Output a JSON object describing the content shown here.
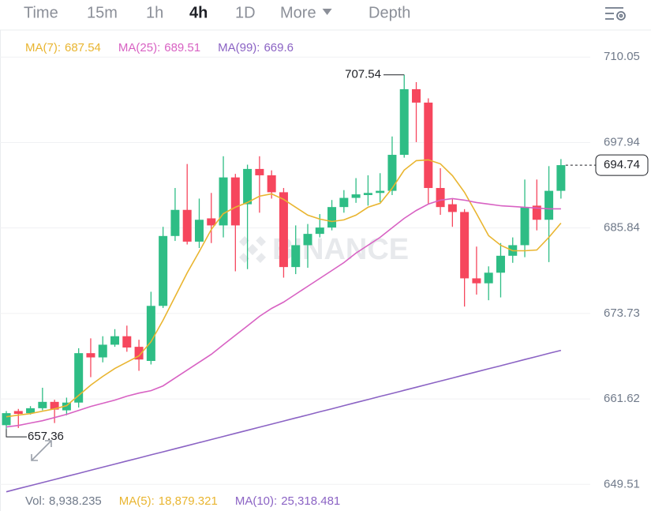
{
  "toolbar": {
    "tabs": [
      "Time",
      "15m",
      "1h",
      "4h",
      "1D",
      "More",
      "Depth"
    ],
    "active": 3
  },
  "chart_data": {
    "type": "candlestick",
    "watermark": "BINANCE",
    "up_color": "#2ebd85",
    "down_color": "#f6465d",
    "ylim": [
      648.2,
      713.1
    ],
    "yticks": [
      710.05,
      697.94,
      685.84,
      673.73,
      661.62,
      649.51
    ],
    "grid": true,
    "open": [
      657.9,
      659.9,
      659.6,
      660.3,
      661.2,
      660.0,
      661.1,
      668.1,
      667.5,
      669.3,
      670.5,
      669.0,
      667.0,
      674.8,
      684.7,
      688.4,
      683.9,
      687.2,
      686.2,
      693.0,
      689.2,
      694.2,
      693.3,
      690.9,
      680.3,
      683.4,
      685.0,
      685.9,
      688.8,
      690.1,
      690.5,
      690.8,
      691.1,
      696.2,
      705.5,
      703.6,
      691.5,
      689.2,
      688.1,
      678.7,
      678.0,
      679.5,
      681.9,
      683.4,
      689.0,
      687.0,
      691.1
    ],
    "high": [
      659.9,
      660.2,
      660.6,
      663.2,
      661.5,
      661.8,
      668.8,
      670.2,
      670.5,
      671.5,
      672.0,
      670.0,
      676.8,
      686.0,
      691.5,
      694.9,
      690.0,
      690.8,
      696.0,
      693.5,
      694.8,
      696.0,
      694.0,
      691.5,
      686.2,
      686.4,
      687.8,
      689.8,
      691.2,
      692.9,
      693.3,
      693.6,
      698.8,
      707.54,
      706.5,
      704.2,
      694.3,
      690.0,
      688.5,
      683.2,
      680.4,
      683.7,
      684.5,
      692.7,
      692.7,
      694.6,
      695.6
    ],
    "low": [
      657.36,
      657.5,
      659.4,
      660.0,
      658.2,
      659.3,
      660.4,
      664.7,
      666.8,
      669.0,
      668.3,
      665.6,
      666.5,
      674.5,
      684.0,
      683.5,
      683.0,
      683.7,
      684.5,
      679.7,
      680.0,
      688.0,
      690.0,
      678.8,
      679.3,
      680.2,
      684.5,
      685.5,
      688.0,
      689.4,
      689.0,
      689.5,
      690.5,
      695.8,
      698.0,
      689.3,
      687.7,
      686.0,
      674.7,
      676.4,
      675.6,
      676.0,
      680.9,
      681.7,
      685.5,
      681.0,
      690.0
    ],
    "close": [
      659.6,
      659.5,
      660.3,
      661.2,
      660.1,
      661.1,
      668.1,
      667.5,
      669.3,
      670.5,
      668.9,
      667.2,
      674.8,
      684.7,
      688.4,
      683.9,
      687.0,
      686.2,
      693.0,
      686.2,
      694.2,
      693.3,
      690.9,
      680.3,
      683.4,
      685.0,
      685.9,
      688.8,
      690.1,
      690.6,
      690.8,
      691.1,
      696.2,
      705.5,
      703.6,
      691.5,
      688.8,
      688.1,
      678.7,
      678.0,
      679.5,
      681.9,
      683.4,
      688.8,
      687.0,
      691.1,
      694.74
    ],
    "series": [
      {
        "name": "MA(7)",
        "label": "MA(7):",
        "last": 687.54,
        "color": "#e9b530",
        "values": [
          659.09,
          659.32,
          659.54,
          659.88,
          660.21,
          660.66,
          662.12,
          663.57,
          664.81,
          665.93,
          666.82,
          667.72,
          669.73,
          672.76,
          676.12,
          679.48,
          682.5,
          685.63,
          687.87,
          688.77,
          689.44,
          690.34,
          690.67,
          689.89,
          688.77,
          687.65,
          687.09,
          686.75,
          686.98,
          687.65,
          688.77,
          689.33,
          691.46,
          694.03,
          695.38,
          695.49,
          694.93,
          693.25,
          690.9,
          687.87,
          684.74,
          683.39,
          682.61,
          682.61,
          682.72,
          684.51,
          686.53
        ]
      },
      {
        "name": "MA(25)",
        "label": "MA(25):",
        "last": 689.51,
        "color": "#d862c3",
        "values": [
          657.64,
          657.86,
          658.2,
          658.53,
          658.98,
          659.43,
          659.99,
          660.55,
          661.0,
          661.45,
          662.01,
          662.45,
          662.79,
          663.46,
          664.58,
          665.7,
          666.82,
          667.94,
          669.29,
          670.63,
          671.97,
          673.32,
          674.44,
          675.33,
          676.45,
          677.57,
          678.69,
          679.81,
          680.93,
          682.27,
          683.39,
          684.51,
          685.86,
          687.2,
          688.32,
          689.22,
          689.78,
          690.0,
          689.78,
          689.44,
          689.22,
          688.99,
          688.88,
          688.77,
          688.66,
          688.55,
          688.55
        ]
      },
      {
        "name": "MA(99)",
        "label": "MA(99):",
        "last": 669.6,
        "color": "#8b63c4",
        "values": [
          648.46,
          648.9,
          649.33,
          649.77,
          650.2,
          650.64,
          651.07,
          651.51,
          651.95,
          652.38,
          652.82,
          653.25,
          653.69,
          654.12,
          654.56,
          654.99,
          655.43,
          655.87,
          656.3,
          656.74,
          657.17,
          657.61,
          658.05,
          658.48,
          658.92,
          659.35,
          659.79,
          660.22,
          660.66,
          661.1,
          661.53,
          661.97,
          662.4,
          662.84,
          663.27,
          663.71,
          664.15,
          664.58,
          665.02,
          665.45,
          665.89,
          666.32,
          666.76,
          667.2,
          667.63,
          668.07,
          668.5
        ]
      }
    ],
    "high_marker": 707.54,
    "low_marker": 657.36,
    "last_price": 694.74,
    "volume_legend": [
      {
        "label": "Vol:",
        "value": 8938.235,
        "value_label": "8,938.235",
        "color": "#707a8a"
      },
      {
        "label": "MA(5):",
        "value": 18879.321,
        "value_label": "18,879.321",
        "color": "#e9b530"
      },
      {
        "label": "MA(10):",
        "value": 25318.481,
        "value_label": "25,318.481",
        "color": "#8b63c4"
      }
    ]
  }
}
